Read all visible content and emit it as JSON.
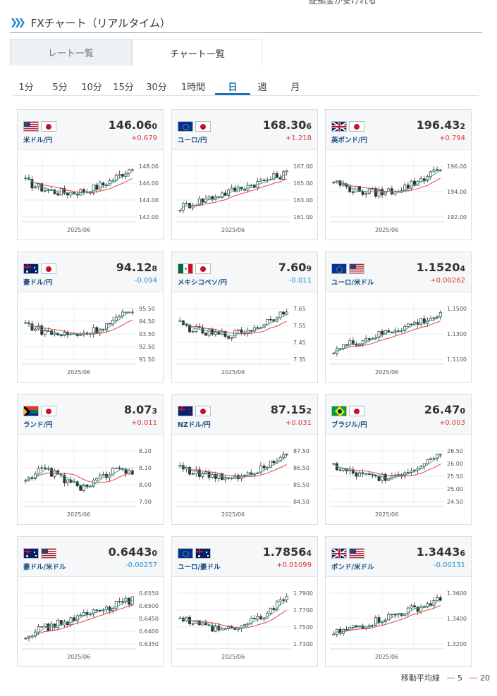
{
  "header": {
    "top_clip": "証拠金が安けれる",
    "title": "FXチャート（リアルタイム）"
  },
  "tabs": [
    {
      "label": "レート一覧",
      "active": false
    },
    {
      "label": "チャート一覧",
      "active": true
    }
  ],
  "periods": [
    {
      "label": "1分"
    },
    {
      "label": "5分"
    },
    {
      "label": "10分"
    },
    {
      "label": "15分"
    },
    {
      "label": "30分"
    },
    {
      "label": "1時間"
    },
    {
      "label": "日",
      "selected": true
    },
    {
      "label": "週"
    },
    {
      "label": "月"
    }
  ],
  "legend": {
    "label": "移動平均線",
    "ma_short": "5",
    "ma_long": "20",
    "ma_short_color": "#1bb39a",
    "ma_long_color": "#e5463b"
  },
  "colors": {
    "up": "#e0373a",
    "down": "#2a8fd0",
    "accent": "#1a73b5"
  },
  "cards": [
    {
      "flags": [
        "us",
        "jp"
      ],
      "pair": "米ドル/円",
      "price_main": "146.06",
      "price_tail": "0",
      "change": "+0.679",
      "dir": "up",
      "ticks": [
        "148.00",
        "146.00",
        "144.00",
        "142.00"
      ],
      "x_label": "2025/06",
      "trend": "vshape"
    },
    {
      "flags": [
        "eu",
        "jp"
      ],
      "pair": "ユーロ/円",
      "price_main": "168.30",
      "price_tail": "6",
      "change": "+1.218",
      "dir": "up",
      "ticks": [
        "167.00",
        "165.00",
        "163.00",
        "161.00"
      ],
      "x_label": "2025/06",
      "trend": "rise"
    },
    {
      "flags": [
        "gb",
        "jp"
      ],
      "pair": "英ポンド/円",
      "price_main": "196.43",
      "price_tail": "2",
      "change": "+0.794",
      "dir": "up",
      "ticks": [
        "196.00",
        "194.00",
        "192.00"
      ],
      "x_label": "2025/06",
      "trend": "vshape"
    },
    {
      "flags": [
        "au",
        "jp"
      ],
      "pair": "豪ドル/円",
      "price_main": "94.12",
      "price_tail": "8",
      "change": "-0.094",
      "dir": "down",
      "ticks": [
        "95.50",
        "94.50",
        "93.50",
        "92.50",
        "91.50"
      ],
      "x_label": "2025/06",
      "trend": "vshape"
    },
    {
      "flags": [
        "mx",
        "jp"
      ],
      "pair": "メキシコペソ/円",
      "price_main": "7.60",
      "price_tail": "9",
      "change": "-0.011",
      "dir": "down",
      "ticks": [
        "7.65",
        "7.55",
        "7.45",
        "7.35"
      ],
      "x_label": "2025/06",
      "trend": "vshape"
    },
    {
      "flags": [
        "eu",
        "us"
      ],
      "pair": "ユーロ/米ドル",
      "price_main": "1.1520",
      "price_tail": "4",
      "change": "+0.00262",
      "dir": "up",
      "ticks": [
        "1.1500",
        "1.1300",
        "1.1100"
      ],
      "x_label": "2025/06",
      "trend": "rise"
    },
    {
      "flags": [
        "za",
        "jp"
      ],
      "pair": "ランド/円",
      "price_main": "8.07",
      "price_tail": "3",
      "change": "+0.011",
      "dir": "up",
      "ticks": [
        "8.20",
        "8.10",
        "8.00",
        "7.90"
      ],
      "x_label": "2025/06",
      "trend": "wave"
    },
    {
      "flags": [
        "nz",
        "jp"
      ],
      "pair": "NZドル/円",
      "price_main": "87.15",
      "price_tail": "2",
      "change": "+0.031",
      "dir": "up",
      "ticks": [
        "87.50",
        "86.50",
        "85.50",
        "84.50"
      ],
      "x_label": "2025/06",
      "trend": "vshape"
    },
    {
      "flags": [
        "br",
        "jp"
      ],
      "pair": "ブラジル/円",
      "price_main": "26.47",
      "price_tail": "0",
      "change": "+0.003",
      "dir": "up",
      "ticks": [
        "26.50",
        "26.00",
        "25.50",
        "25.00",
        "24.50"
      ],
      "x_label": "2025/06",
      "trend": "vshape"
    },
    {
      "flags": [
        "au",
        "us"
      ],
      "pair": "豪ドル/米ドル",
      "price_main": "0.6443",
      "price_tail": "0",
      "change": "-0.00257",
      "dir": "down",
      "ticks": [
        "0.6550",
        "0.6500",
        "0.6450",
        "0.6400",
        "0.6350"
      ],
      "x_label": "2025/06",
      "trend": "rise"
    },
    {
      "flags": [
        "eu",
        "au"
      ],
      "pair": "ユーロ/豪ドル",
      "price_main": "1.7856",
      "price_tail": "4",
      "change": "+0.01099",
      "dir": "up",
      "ticks": [
        "1.7900",
        "1.7700",
        "1.7500",
        "1.7300"
      ],
      "x_label": "2025/06",
      "trend": "dip"
    },
    {
      "flags": [
        "gb",
        "us"
      ],
      "pair": "ポンド/米ドル",
      "price_main": "1.3443",
      "price_tail": "6",
      "change": "-0.00131",
      "dir": "down",
      "ticks": [
        "1.3600",
        "1.3400",
        "1.3200"
      ],
      "x_label": "2025/06",
      "trend": "rise"
    }
  ]
}
